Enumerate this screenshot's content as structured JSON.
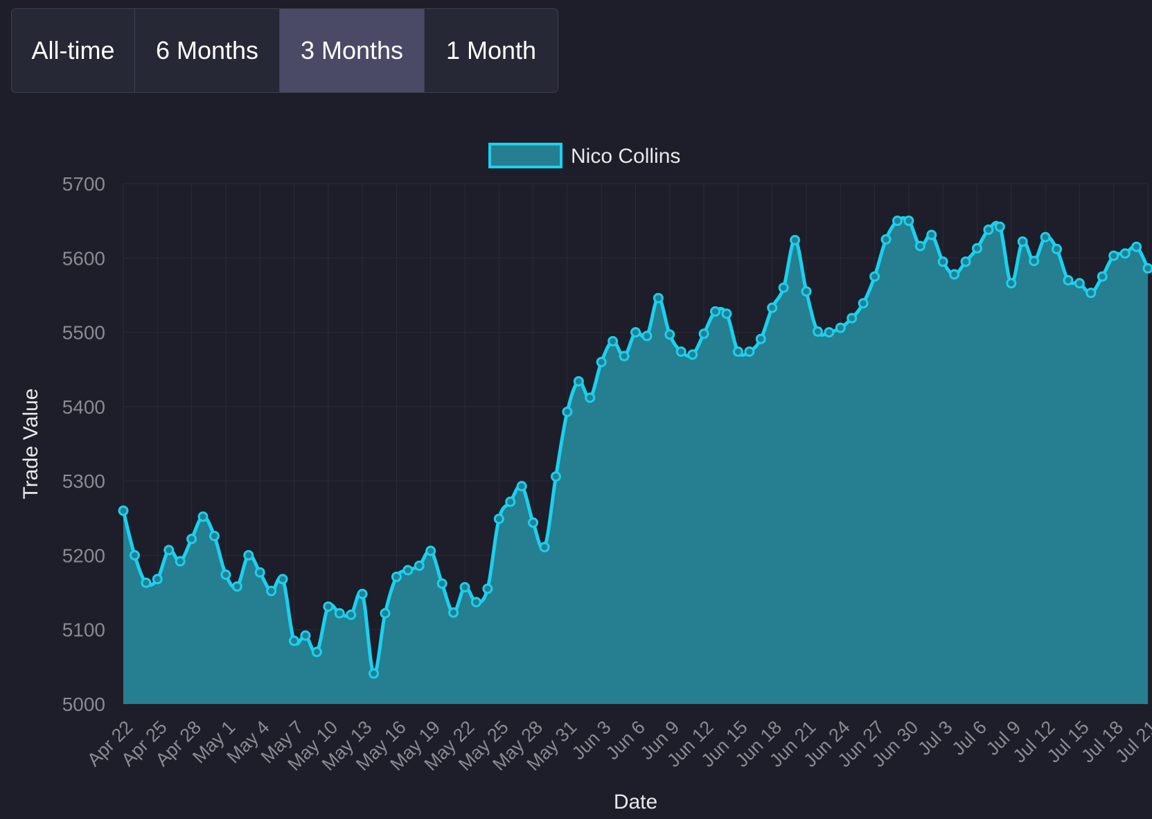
{
  "range_buttons": [
    {
      "label": "All-time",
      "active": false
    },
    {
      "label": "6 Months",
      "active": false
    },
    {
      "label": "3 Months",
      "active": true
    },
    {
      "label": "1 Month",
      "active": false
    }
  ],
  "colors": {
    "background": "#1d1e29",
    "line": "#1bd0ee",
    "fill": "#257f91",
    "grid": "#2a2b36",
    "tick_text": "#8a8a93",
    "label_text": "#e8e8ec",
    "active_button": "#4a4a67"
  },
  "chart_data": {
    "type": "area",
    "title": "",
    "xlabel": "Date",
    "ylabel": "Trade Value",
    "ylim": [
      5000,
      5700
    ],
    "yticks": [
      5000,
      5100,
      5200,
      5300,
      5400,
      5500,
      5600,
      5700
    ],
    "xticks": [
      "Apr 22",
      "Apr 25",
      "Apr 28",
      "May 1",
      "May 4",
      "May 7",
      "May 10",
      "May 13",
      "May 16",
      "May 19",
      "May 22",
      "May 25",
      "May 28",
      "May 31",
      "Jun 3",
      "Jun 6",
      "Jun 9",
      "Jun 12",
      "Jun 15",
      "Jun 18",
      "Jun 21",
      "Jun 24",
      "Jun 27",
      "Jun 30",
      "Jul 3",
      "Jul 6",
      "Jul 9",
      "Jul 12",
      "Jul 15",
      "Jul 18",
      "Jul 21"
    ],
    "legend": "top-center",
    "grid": true,
    "x_start": "Apr 22",
    "x_end": "Jul 21",
    "series": [
      {
        "name": "Nico Collins",
        "values": [
          5260,
          5200,
          5163,
          5168,
          5207,
          5192,
          5222,
          5252,
          5226,
          5174,
          5158,
          5200,
          5177,
          5152,
          5168,
          5085,
          5092,
          5070,
          5131,
          5122,
          5120,
          5148,
          5041,
          5122,
          5171,
          5180,
          5186,
          5206,
          5162,
          5123,
          5157,
          5137,
          5155,
          5249,
          5272,
          5293,
          5244,
          5211,
          5306,
          5393,
          5434,
          5412,
          5460,
          5488,
          5468,
          5500,
          5495,
          5546,
          5497,
          5474,
          5470,
          5498,
          5528,
          5525,
          5474,
          5474,
          5491,
          5533,
          5560,
          5624,
          5555,
          5501,
          5500,
          5506,
          5519,
          5539,
          5575,
          5625,
          5650,
          5650,
          5616,
          5631,
          5595,
          5578,
          5595,
          5613,
          5638,
          5642,
          5566,
          5622,
          5596,
          5628,
          5612,
          5570,
          5566,
          5553,
          5575,
          5603,
          5606,
          5615,
          5586
        ]
      }
    ]
  }
}
